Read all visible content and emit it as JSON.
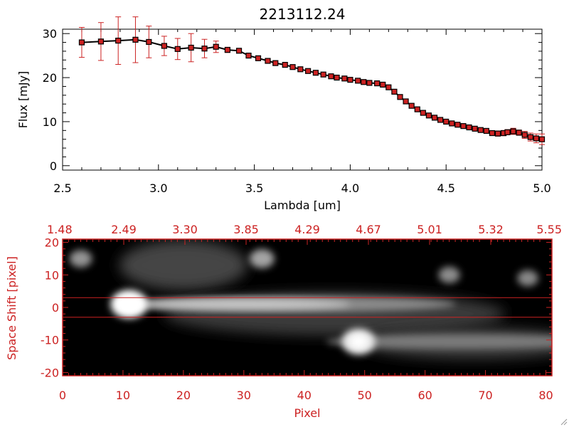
{
  "chart_data": [
    {
      "type": "line",
      "title": "2213112.24",
      "xlabel": "Lambda [um]",
      "ylabel": "Flux [mJy]",
      "xlim": [
        2.5,
        5.0
      ],
      "ylim": [
        -1,
        31
      ],
      "xticks": [
        "2.5",
        "3.0",
        "3.5",
        "4.0",
        "4.5",
        "5.0"
      ],
      "yticks": [
        "0",
        "10",
        "20",
        "30"
      ],
      "colors": {
        "line": "#000000",
        "marker": "#cc2222",
        "error": "#cc2222"
      },
      "series": [
        {
          "x": [
            2.6,
            2.7,
            2.79,
            2.88,
            2.95,
            3.03,
            3.1,
            3.17,
            3.24,
            3.3,
            3.36,
            3.42,
            3.47,
            3.52,
            3.57,
            3.61,
            3.66,
            3.7,
            3.74,
            3.78,
            3.82,
            3.86,
            3.9,
            3.93,
            3.97,
            4.0,
            4.04,
            4.07,
            4.1,
            4.14,
            4.17,
            4.2,
            4.23,
            4.26,
            4.29,
            4.32,
            4.35,
            4.38,
            4.41,
            4.44,
            4.47,
            4.5,
            4.53,
            4.56,
            4.59,
            4.62,
            4.65,
            4.68,
            4.71,
            4.74,
            4.77,
            4.8,
            4.82,
            4.85,
            4.88,
            4.91,
            4.94,
            4.97,
            5.0
          ],
          "y": [
            28.0,
            28.2,
            28.4,
            28.6,
            28.1,
            27.2,
            26.5,
            26.8,
            26.6,
            27.0,
            26.3,
            26.1,
            25.0,
            24.4,
            23.8,
            23.3,
            22.9,
            22.4,
            21.9,
            21.5,
            21.1,
            20.7,
            20.3,
            20.0,
            19.8,
            19.5,
            19.3,
            19.0,
            18.8,
            18.7,
            18.4,
            17.8,
            16.8,
            15.6,
            14.6,
            13.6,
            12.8,
            12.0,
            11.4,
            10.9,
            10.4,
            10.0,
            9.6,
            9.3,
            9.0,
            8.7,
            8.4,
            8.1,
            7.9,
            7.4,
            7.3,
            7.4,
            7.6,
            7.8,
            7.5,
            7.0,
            6.5,
            6.2,
            6.0
          ],
          "err": [
            3.4,
            4.3,
            5.4,
            5.2,
            3.6,
            2.2,
            2.4,
            3.2,
            2.1,
            1.3,
            0.6,
            0.4,
            0.3,
            0.3,
            0.3,
            0.3,
            0.3,
            0.3,
            0.3,
            0.3,
            0.3,
            0.3,
            0.3,
            0.3,
            0.3,
            0.3,
            0.3,
            0.3,
            0.3,
            0.3,
            0.3,
            0.3,
            0.3,
            0.3,
            0.3,
            0.3,
            0.3,
            0.3,
            0.3,
            0.3,
            0.3,
            0.3,
            0.3,
            0.3,
            0.3,
            0.3,
            0.3,
            0.3,
            0.3,
            0.4,
            0.6,
            0.6,
            0.6,
            0.7,
            0.6,
            0.8,
            0.9,
            1.0,
            1.2
          ]
        }
      ]
    },
    {
      "type": "heatmap",
      "xlabel": "Pixel",
      "ylabel": "Space Shift [pixel]",
      "xlim": [
        0,
        81
      ],
      "ylim": [
        -21,
        21
      ],
      "xticks": [
        "0",
        "10",
        "20",
        "30",
        "40",
        "50",
        "60",
        "70",
        "80"
      ],
      "yticks": [
        "-20",
        "-10",
        "0",
        "10",
        "20"
      ],
      "top_ticks": [
        "1.48",
        "2.49",
        "3.30",
        "3.85",
        "4.29",
        "4.67",
        "5.01",
        "5.32",
        "5.55"
      ],
      "extraction_window": [
        -3,
        3
      ],
      "colors": {
        "axes": "#cc2222",
        "background": "#000000",
        "window": "#cc2222"
      },
      "sources": [
        {
          "x": 11,
          "y": 1,
          "flux": 1.0
        },
        {
          "x": 49,
          "y": -10.5,
          "flux": 0.85
        },
        {
          "x": 33,
          "y": 15,
          "flux": 0.45
        },
        {
          "x": 3,
          "y": 15,
          "flux": 0.35
        },
        {
          "x": 64,
          "y": 10,
          "flux": 0.3
        },
        {
          "x": 77,
          "y": 9,
          "flux": 0.28
        }
      ]
    }
  ]
}
